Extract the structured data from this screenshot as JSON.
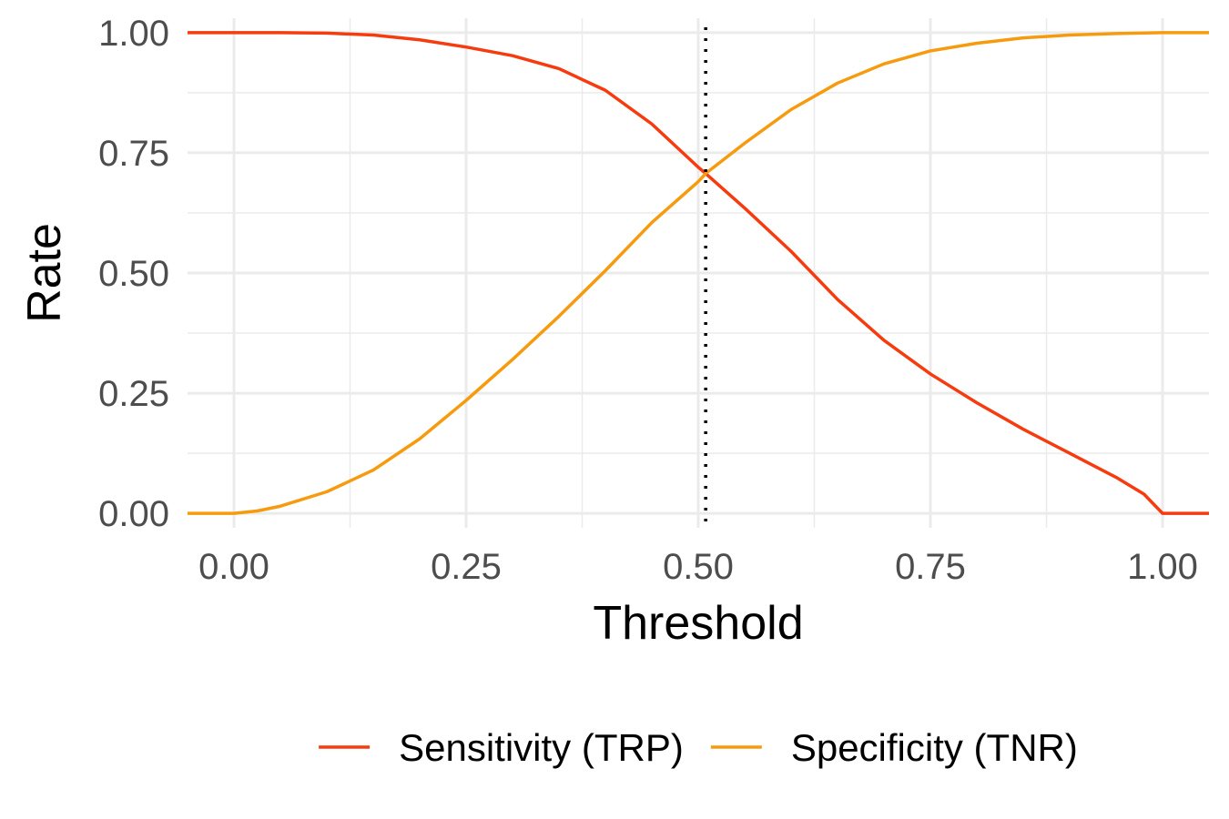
{
  "chart_data": {
    "type": "line",
    "xlabel": "Threshold",
    "ylabel": "Rate",
    "xlim": [
      -0.05,
      1.05
    ],
    "ylim": [
      -0.03,
      1.03
    ],
    "x_ticks": [
      "0.00",
      "0.25",
      "0.50",
      "0.75",
      "1.00"
    ],
    "y_ticks": [
      "0.00",
      "0.25",
      "0.50",
      "0.75",
      "1.00"
    ],
    "grid": true,
    "legend_position": "bottom",
    "threshold_marker": {
      "x": 0.508,
      "style": "dotted",
      "color": "#000000"
    },
    "series": [
      {
        "name": "Sensitivity (TRP)",
        "color": "#f63b0f",
        "points": [
          [
            -0.05,
            1.0
          ],
          [
            0.0,
            1.0
          ],
          [
            0.05,
            1.0
          ],
          [
            0.1,
            0.999
          ],
          [
            0.15,
            0.995
          ],
          [
            0.2,
            0.985
          ],
          [
            0.25,
            0.97
          ],
          [
            0.3,
            0.952
          ],
          [
            0.35,
            0.925
          ],
          [
            0.4,
            0.88
          ],
          [
            0.45,
            0.81
          ],
          [
            0.5,
            0.72
          ],
          [
            0.508,
            0.707
          ],
          [
            0.55,
            0.635
          ],
          [
            0.6,
            0.545
          ],
          [
            0.65,
            0.445
          ],
          [
            0.7,
            0.36
          ],
          [
            0.75,
            0.29
          ],
          [
            0.8,
            0.23
          ],
          [
            0.85,
            0.175
          ],
          [
            0.9,
            0.125
          ],
          [
            0.95,
            0.075
          ],
          [
            0.98,
            0.04
          ],
          [
            1.0,
            0.0
          ],
          [
            1.05,
            0.0
          ]
        ]
      },
      {
        "name": "Specificity (TNR)",
        "color": "#f69b0f",
        "points": [
          [
            -0.05,
            0.0
          ],
          [
            0.0,
            0.0
          ],
          [
            0.025,
            0.005
          ],
          [
            0.05,
            0.015
          ],
          [
            0.1,
            0.045
          ],
          [
            0.15,
            0.09
          ],
          [
            0.2,
            0.155
          ],
          [
            0.25,
            0.235
          ],
          [
            0.3,
            0.32
          ],
          [
            0.35,
            0.41
          ],
          [
            0.4,
            0.505
          ],
          [
            0.45,
            0.605
          ],
          [
            0.5,
            0.69
          ],
          [
            0.508,
            0.707
          ],
          [
            0.55,
            0.77
          ],
          [
            0.6,
            0.84
          ],
          [
            0.65,
            0.895
          ],
          [
            0.7,
            0.935
          ],
          [
            0.75,
            0.962
          ],
          [
            0.8,
            0.978
          ],
          [
            0.85,
            0.989
          ],
          [
            0.9,
            0.995
          ],
          [
            0.95,
            0.998
          ],
          [
            1.0,
            1.0
          ],
          [
            1.05,
            1.0
          ]
        ]
      }
    ]
  }
}
